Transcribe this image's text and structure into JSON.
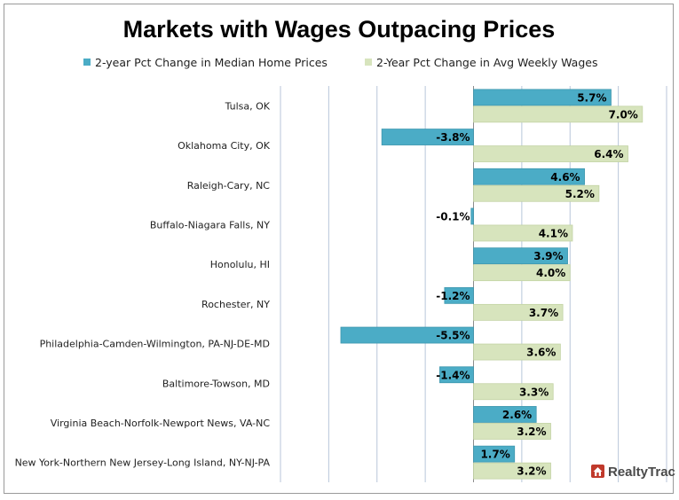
{
  "chart_data": {
    "type": "bar",
    "orientation": "horizontal",
    "title": "Markets with Wages Outpacing Prices",
    "categories": [
      "Tulsa, OK",
      "Oklahoma City, OK",
      "Raleigh-Cary, NC",
      "Buffalo-Niagara Falls, NY",
      "Honolulu, HI",
      "Rochester, NY",
      "Philadelphia-Camden-Wilmington, PA-NJ-DE-MD",
      "Baltimore-Towson, MD",
      "Virginia Beach-Norfolk-Newport News, VA-NC",
      "New York-Northern New Jersey-Long Island, NY-NJ-PA"
    ],
    "series": [
      {
        "name": "2-year Pct Change in Median Home Prices",
        "color": "#4bacc6",
        "values": [
          5.7,
          -3.8,
          4.6,
          -0.1,
          3.9,
          -1.2,
          -5.5,
          -1.4,
          2.6,
          1.7
        ],
        "labels": [
          "5.7%",
          "-3.8%",
          "4.6%",
          "-0.1%",
          "3.9%",
          "-1.2%",
          "-5.5%",
          "-1.4%",
          "2.6%",
          "1.7%"
        ]
      },
      {
        "name": "2-Year Pct Change in Avg Weekly Wages",
        "color": "#d7e4bd",
        "values": [
          7.0,
          6.4,
          5.2,
          4.1,
          4.0,
          3.7,
          3.6,
          3.3,
          3.2,
          3.2
        ],
        "labels": [
          "7.0%",
          "6.4%",
          "5.2%",
          "4.1%",
          "4.0%",
          "3.7%",
          "3.6%",
          "3.3%",
          "3.2%",
          "3.2%"
        ]
      }
    ],
    "xlim": [
      -8,
      8
    ],
    "grid": true,
    "legend_position": "top"
  },
  "logo": {
    "text": "RealtyTrac",
    "color": "#c0392b",
    "icon": "house-icon"
  }
}
